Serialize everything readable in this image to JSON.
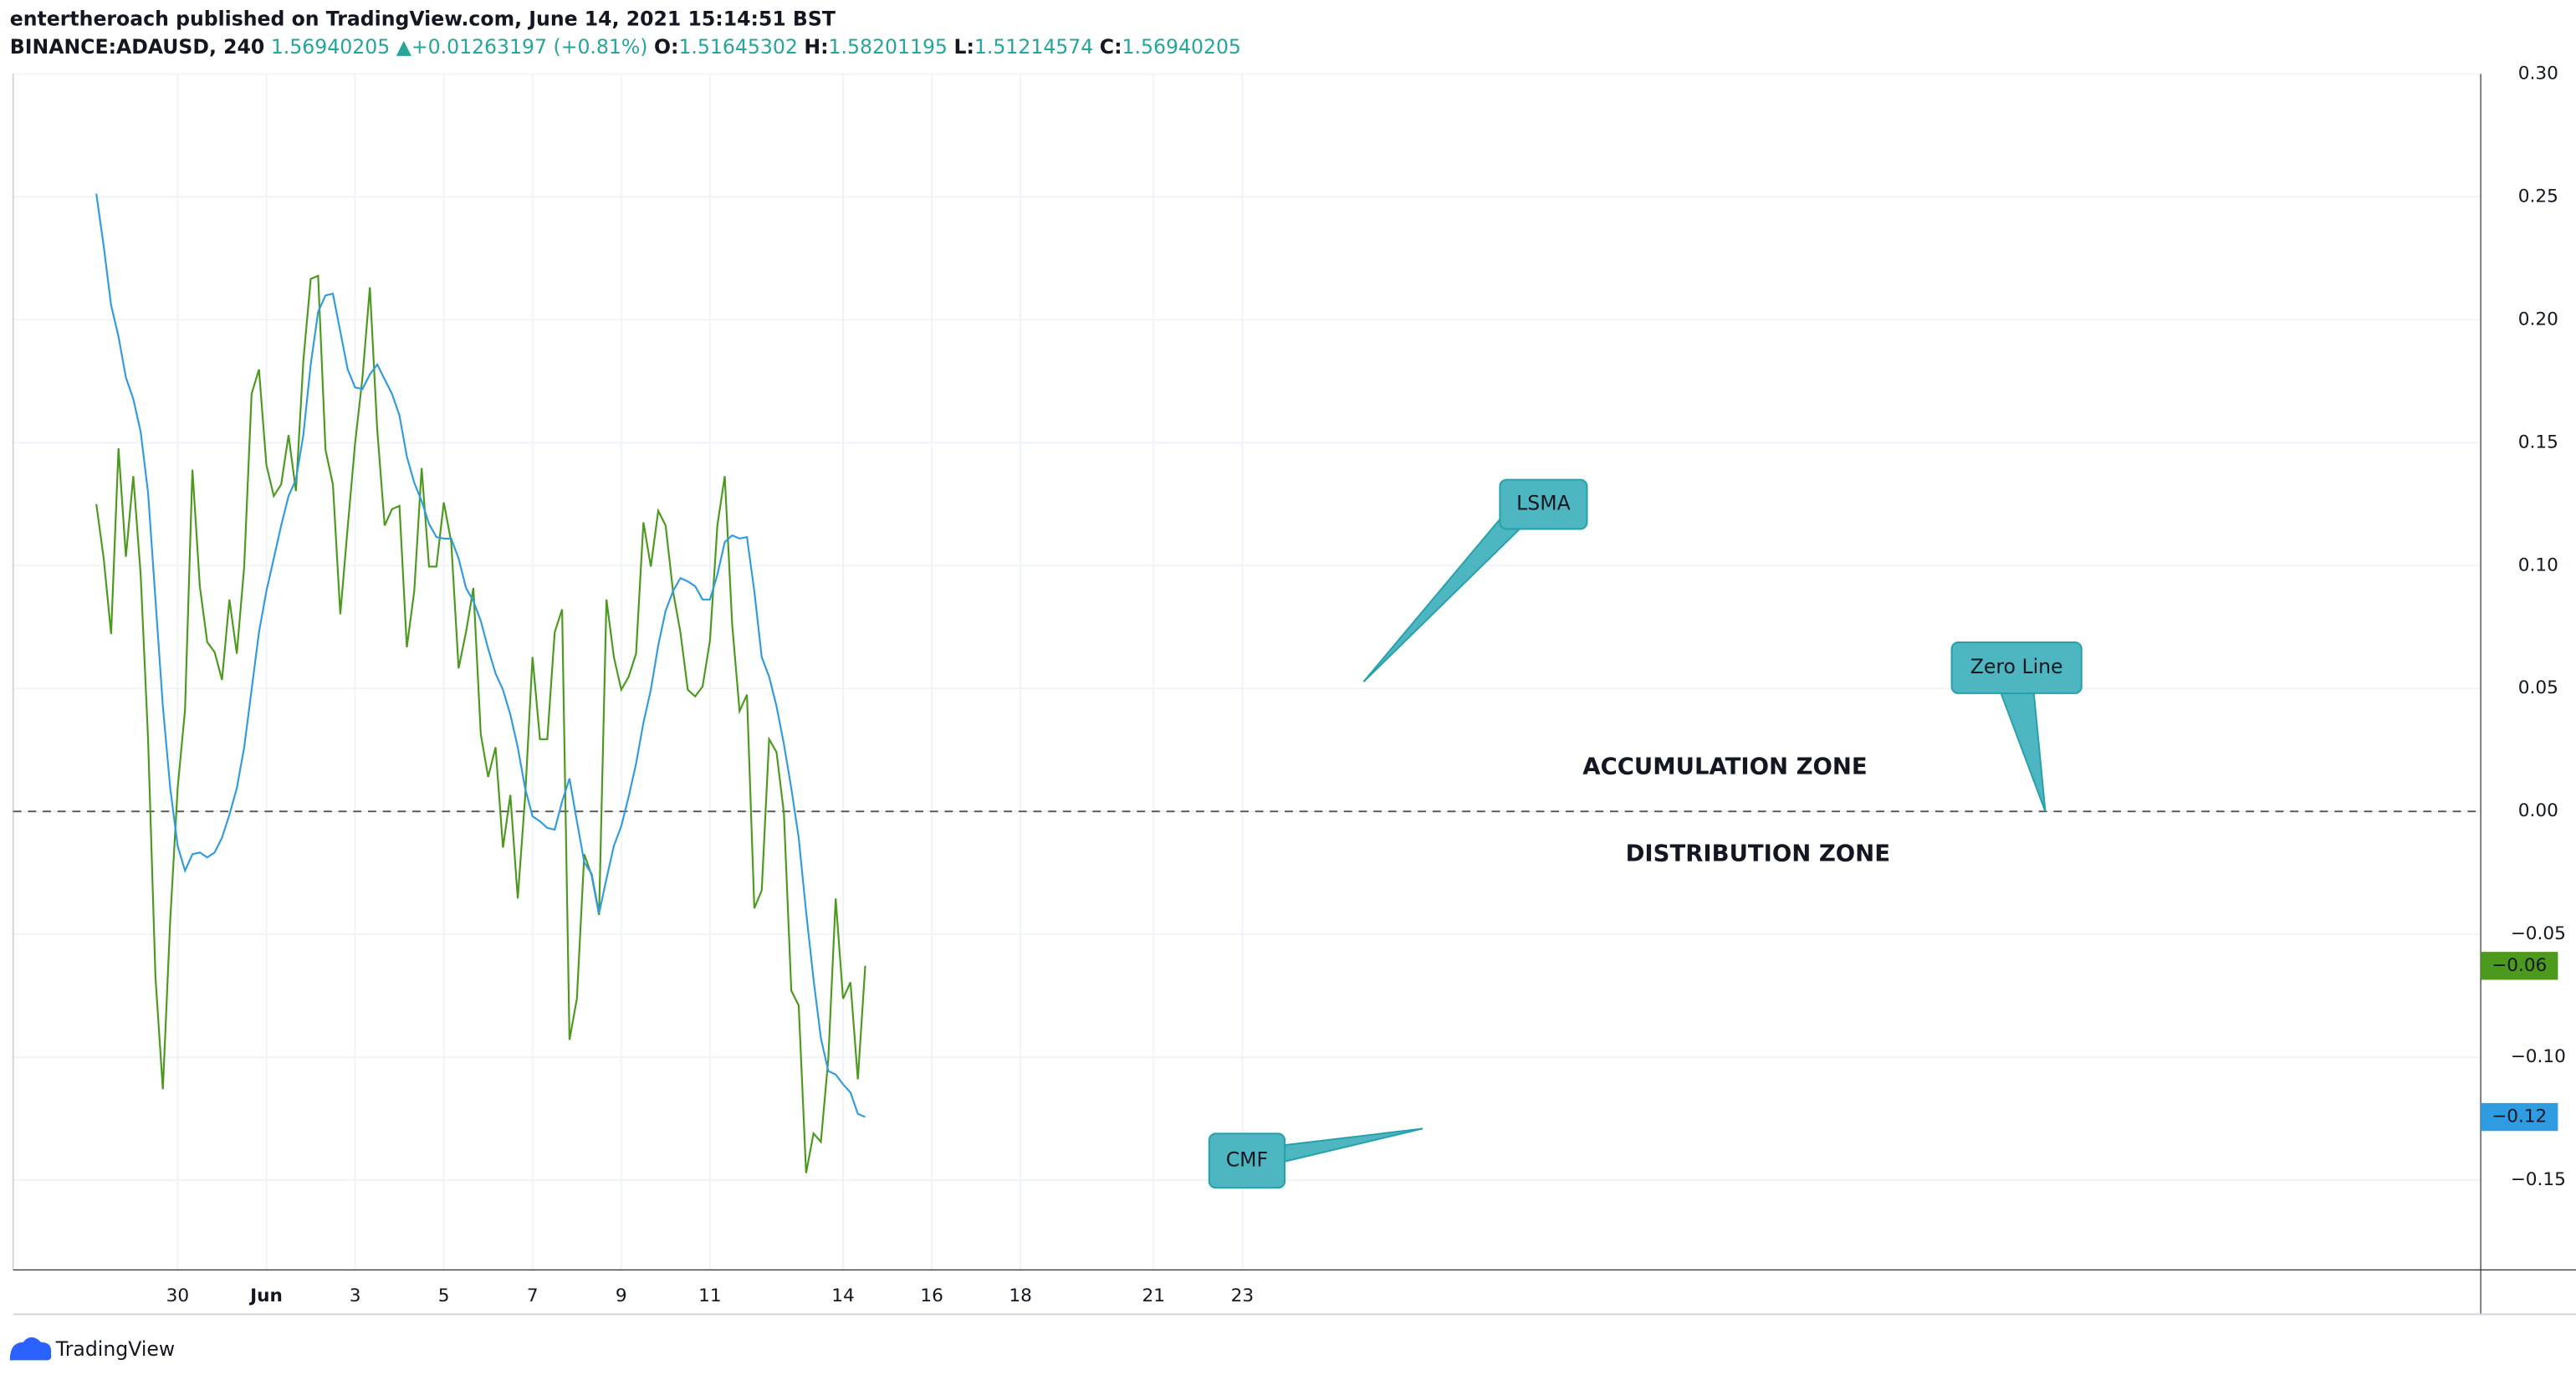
{
  "header": {
    "line1": "entertheroach published on TradingView.com, June 14, 2021 15:14:51 BST",
    "symbol": "BINANCE:ADAUSD, 240",
    "price": "1.56940205",
    "arrow": "▲",
    "change": "+0.01263197 (+0.81%)",
    "o_label": "O:",
    "o": "1.51645302",
    "h_label": "H:",
    "h": "1.58201195",
    "l_label": "L:",
    "l": "1.51214574",
    "c_label": "C:",
    "c": "1.56940205"
  },
  "footer": {
    "brand": "TradingView"
  },
  "chart_data": {
    "type": "line",
    "x": [
      -44,
      -40,
      -36,
      -32,
      -28,
      -24,
      -20,
      -16,
      -12,
      -8,
      -4,
      0,
      4,
      8,
      12,
      16,
      20,
      24,
      28,
      32,
      36,
      40,
      44,
      48,
      52,
      56,
      60,
      64,
      68,
      72,
      76,
      80,
      84,
      88,
      92,
      96,
      100,
      104,
      108,
      112,
      116,
      120,
      124,
      128,
      132,
      136,
      140,
      144,
      148,
      152,
      156,
      160,
      164,
      168,
      172,
      176,
      180,
      184,
      188,
      192,
      196,
      200,
      204,
      208,
      212,
      216,
      220,
      224,
      228,
      232,
      236,
      240,
      244,
      248,
      252,
      256,
      260,
      264,
      268,
      272,
      276,
      280,
      284,
      288,
      292,
      296,
      300,
      304,
      308,
      312,
      316,
      320,
      324,
      328,
      332,
      336,
      340,
      344,
      348,
      352,
      356,
      360,
      364,
      368,
      372
    ],
    "series": [
      {
        "name": "CMF",
        "color": "#4b9a1e",
        "last_label": "−0.06",
        "values": [
          0.125,
          0.1029,
          0.0722,
          0.1477,
          0.1036,
          0.1364,
          0.0963,
          0.0294,
          -0.0675,
          -0.113,
          -0.0441,
          0.0094,
          0.0414,
          0.139,
          0.0916,
          0.0689,
          0.0648,
          0.0535,
          0.0862,
          0.0642,
          0.0996,
          0.1698,
          0.1798,
          0.141,
          0.1283,
          0.133,
          0.1531,
          0.1303,
          0.1832,
          0.2166,
          0.2179,
          0.1471,
          0.133,
          0.0802,
          0.1156,
          0.1497,
          0.1765,
          0.2132,
          0.1551,
          0.1163,
          0.123,
          0.1243,
          0.0668,
          0.0896,
          0.1397,
          0.0996,
          0.0996,
          0.1257,
          0.1096,
          0.0582,
          0.0729,
          0.0909,
          0.0314,
          0.014,
          0.0261,
          -0.0147,
          0.0067,
          -0.0354,
          0.006,
          0.0628,
          0.0294,
          0.0294,
          0.0729,
          0.0822,
          -0.0929,
          -0.0762,
          -0.0174,
          -0.0261,
          -0.0421,
          0.0862,
          0.0628,
          0.0495,
          0.0548,
          0.0642,
          0.1176,
          0.0996,
          0.1223,
          0.1163,
          0.0896,
          0.0729,
          0.0495,
          0.0468,
          0.0508,
          0.0695,
          0.1163,
          0.1364,
          0.0762,
          0.0408,
          0.0475,
          -0.0394,
          -0.0321,
          0.0294,
          0.0241,
          -0.0007,
          -0.0729,
          -0.0789,
          -0.1471,
          -0.131,
          -0.1344,
          -0.1009,
          -0.0354,
          -0.0762,
          -0.0695,
          -0.109,
          -0.0628
        ]
      },
      {
        "name": "LSMA",
        "color": "#2f9be0",
        "last_label": "−0.12",
        "values": [
          0.2513,
          0.2299,
          0.2059,
          0.1932,
          0.1765,
          0.1678,
          0.1544,
          0.1297,
          0.0862,
          0.0428,
          0.0094,
          -0.014,
          -0.0241,
          -0.0174,
          -0.0167,
          -0.0187,
          -0.0167,
          -0.0107,
          -0.0013,
          0.0094,
          0.0261,
          0.0495,
          0.0729,
          0.0896,
          0.1029,
          0.1163,
          0.1283,
          0.135,
          0.1531,
          0.1818,
          0.2032,
          0.2099,
          0.2106,
          0.1952,
          0.1798,
          0.1725,
          0.1718,
          0.1778,
          0.1818,
          0.1758,
          0.1698,
          0.1611,
          0.1444,
          0.1337,
          0.1263,
          0.117,
          0.1116,
          0.111,
          0.111,
          0.1029,
          0.0909,
          0.0856,
          0.0775,
          0.0662,
          0.0561,
          0.0495,
          0.0394,
          0.0261,
          0.0094,
          -0.002,
          -0.004,
          -0.0067,
          -0.0074,
          0.004,
          0.0134,
          -0.004,
          -0.0207,
          -0.0254,
          -0.0414,
          -0.0274,
          -0.014,
          -0.006,
          0.006,
          0.0194,
          0.0361,
          0.0495,
          0.0675,
          0.0816,
          0.0896,
          0.0949,
          0.0936,
          0.0916,
          0.0862,
          0.0862,
          0.0963,
          0.1096,
          0.1123,
          0.111,
          0.1116,
          0.0896,
          0.0628,
          0.0548,
          0.0428,
          0.0274,
          0.0094,
          -0.0107,
          -0.0408,
          -0.0682,
          -0.0922,
          -0.1056,
          -0.107,
          -0.111,
          -0.1143,
          -0.123,
          -0.1243
        ]
      }
    ],
    "zero_line": 0,
    "xlim": [
      -89,
      1246
    ],
    "xticks": [
      {
        "value": 0,
        "label": "30"
      },
      {
        "value": 48,
        "label": "Jun"
      },
      {
        "value": 96,
        "label": "3"
      },
      {
        "value": 144,
        "label": "5"
      },
      {
        "value": 192,
        "label": "7"
      },
      {
        "value": 240,
        "label": "9"
      },
      {
        "value": 288,
        "label": "11"
      },
      {
        "value": 360,
        "label": "14"
      },
      {
        "value": 408,
        "label": "16"
      },
      {
        "value": 456,
        "label": "18"
      },
      {
        "value": 528,
        "label": "21"
      },
      {
        "value": 576,
        "label": "23"
      }
    ],
    "ylim": [
      -0.1865,
      0.3
    ],
    "yticks": [
      {
        "value": 0.3,
        "label": "0.30"
      },
      {
        "value": 0.25,
        "label": "0.25"
      },
      {
        "value": 0.2,
        "label": "0.20"
      },
      {
        "value": 0.15,
        "label": "0.15"
      },
      {
        "value": 0.1,
        "label": "0.10"
      },
      {
        "value": 0.05,
        "label": "0.05"
      },
      {
        "value": 0,
        "label": "0.00"
      },
      {
        "value": -0.05,
        "label": "−0.05"
      },
      {
        "value": -0.1,
        "label": "−0.10"
      },
      {
        "value": -0.15,
        "label": "−0.15"
      }
    ],
    "grid": true,
    "annotations": {
      "accumulation": "ACCUMULATION ZONE",
      "distribution": "DISTRIBUTION ZONE",
      "zero": "Zero Line"
    }
  }
}
